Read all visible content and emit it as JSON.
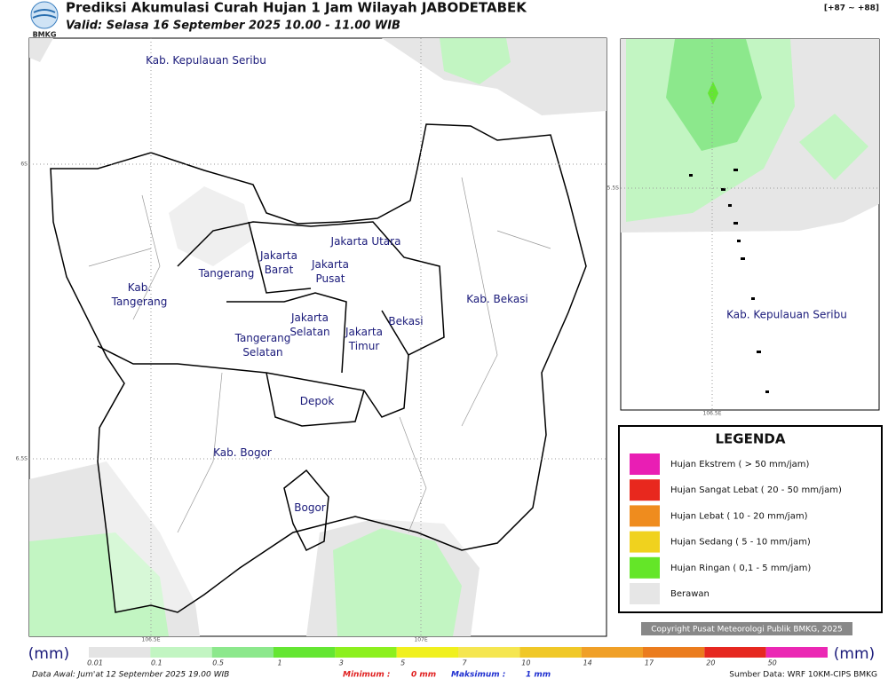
{
  "header": {
    "logo": "BMKG",
    "title": "Prediksi Akumulasi Curah Hujan 1 Jam Wilayah JABODETABEK",
    "subtitle": "Valid: Selasa 16 September 2025 10.00 - 11.00 WIB",
    "range": "[+87 ~ +88]"
  },
  "map": {
    "labels": [
      {
        "lines": [
          "Kab. Kepulauan Seribu"
        ]
      },
      {
        "lines": [
          "Jakarta Utara"
        ]
      },
      {
        "lines": [
          "Jakarta",
          "Barat"
        ]
      },
      {
        "lines": [
          "Jakarta",
          "Pusat"
        ]
      },
      {
        "lines": [
          "Tangerang"
        ]
      },
      {
        "lines": [
          "Kab.",
          "Tangerang"
        ]
      },
      {
        "lines": [
          "Kab. Bekasi"
        ]
      },
      {
        "lines": [
          "Jakarta",
          "Selatan"
        ]
      },
      {
        "lines": [
          "Bekasi"
        ]
      },
      {
        "lines": [
          "Jakarta",
          "Timur"
        ]
      },
      {
        "lines": [
          "Tangerang",
          "Selatan"
        ]
      },
      {
        "lines": [
          "Depok"
        ]
      },
      {
        "lines": [
          "Kab. Bogor"
        ]
      },
      {
        "lines": [
          "Bogor"
        ]
      }
    ],
    "coords": {
      "lat": [
        "6S",
        "6.5S"
      ],
      "lon": [
        "106.5E",
        "107E"
      ]
    }
  },
  "inset": {
    "label": "Kab. Kepulauan Seribu",
    "coords": {
      "lat": "5.5S",
      "lon": "106.5E"
    }
  },
  "legend": {
    "title": "LEGENDA",
    "items": [
      {
        "label": "Hujan Ekstrem ( > 50 mm/jam)",
        "color": "#e91eb4"
      },
      {
        "label": "Hujan Sangat Lebat ( 20 - 50 mm/jam)",
        "color": "#e8281e"
      },
      {
        "label": "Hujan Lebat ( 10 - 20 mm/jam)",
        "color": "#ef8c1e"
      },
      {
        "label": "Hujan Sedang ( 5 - 10 mm/jam)",
        "color": "#f0d21e"
      },
      {
        "label": "Hujan Ringan ( 0,1 - 5 mm/jam)",
        "color": "#64e628"
      },
      {
        "label": "Berawan",
        "color": "#e6e6e6"
      }
    ]
  },
  "copyright": "Copyright Pusat Meteorologi Publik BMKG, 2025",
  "colorbar": {
    "unit": "(mm)",
    "ticks": [
      "0.01",
      "0.1",
      "0.5",
      "1",
      "3",
      "5",
      "7",
      "10",
      "14",
      "17",
      "20",
      "50"
    ],
    "colors": [
      "#e4e4e4",
      "#c2f5c2",
      "#8ce88c",
      "#64e632",
      "#8cf01e",
      "#f0f01e",
      "#f5e650",
      "#f0c828",
      "#f0a028",
      "#eb7c1e",
      "#e62820",
      "#eb28b4"
    ]
  },
  "footer": {
    "start": "Data Awal: Jum'at 12 September 2025 19.00 WIB",
    "min_label": "Minimum :",
    "min": "0 mm",
    "max_label": "Maksimum :",
    "max": "1 mm",
    "source": "Sumber Data: WRF 10KM-CIPS BMKG"
  }
}
